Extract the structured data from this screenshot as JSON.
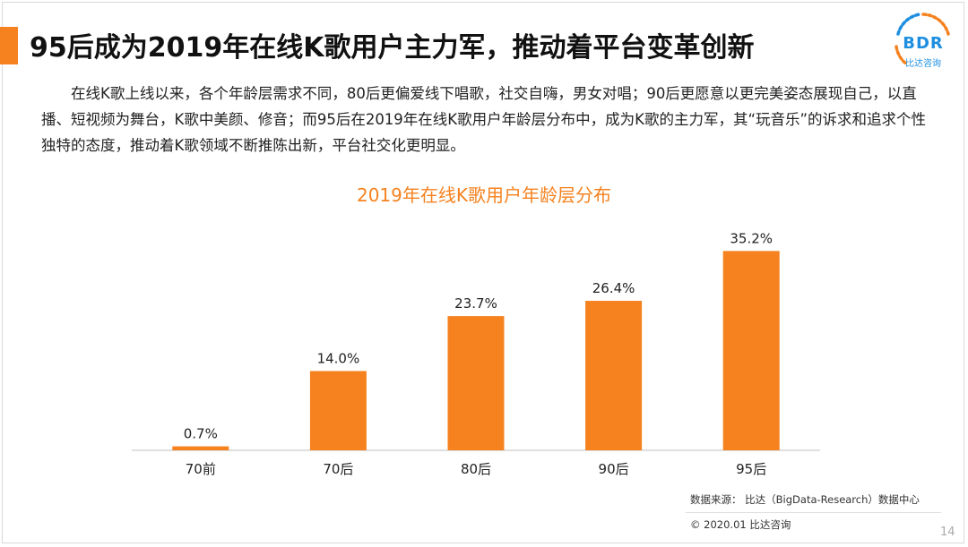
{
  "header": {
    "title": "95后成为2019年在线K歌用户主力军，推动着平台变革创新"
  },
  "logo": {
    "text": "BDR",
    "subtitle": "比达咨询"
  },
  "body": {
    "paragraph": "在线K歌上线以来，各个年龄层需求不同，80后更偏爱线下唱歌，社交自嗨，男女对唱；90后更愿意以更完美姿态展现自己，以直播、短视频为舞台，K歌中美颜、修音；而95后在2019年在线K歌用户年龄层分布中，成为K歌的主力军，其“玩音乐”的诉求和追求个性独特的态度，推动着K歌领域不断推陈出新，平台社交化更明显。"
  },
  "chart_data": {
    "type": "bar",
    "title": "2019年在线K歌用户年龄层分布",
    "categories": [
      "70前",
      "70后",
      "80后",
      "90后",
      "95后"
    ],
    "values": [
      0.7,
      14.0,
      23.7,
      26.4,
      35.2
    ],
    "value_labels": [
      "0.7%",
      "14.0%",
      "23.7%",
      "26.4%",
      "35.2%"
    ],
    "unit": "%",
    "ylim": [
      0,
      40
    ],
    "grid": false,
    "legend": "none",
    "colors": {
      "bar": "#f5821f",
      "axis": "#bfbfbf",
      "title": "#f5821f"
    }
  },
  "footer": {
    "source": "数据来源： 比达（BigData-Research）数据中心",
    "copyright": "© 2020.01 比达咨询",
    "page_number": "14"
  }
}
